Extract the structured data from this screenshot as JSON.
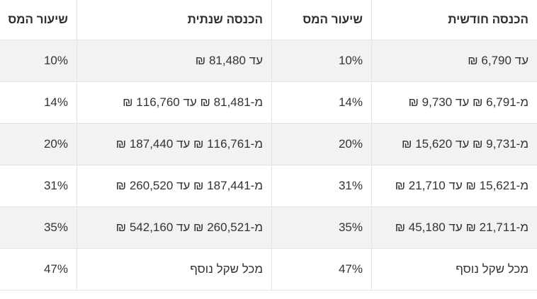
{
  "chart_data": {
    "type": "table",
    "direction": "rtl",
    "columns": [
      "הכנסה חודשית",
      "שיעור המס",
      "הכנסה שנתית",
      "שיעור המס"
    ],
    "rows": [
      [
        "עד 6,790 ₪",
        "10%",
        "עד 81,480 ₪",
        "10%"
      ],
      [
        "מ-6,791 ₪ עד 9,730 ₪",
        "14%",
        "מ-81,481 ₪ עד 116,760 ₪",
        "14%"
      ],
      [
        "מ-9,731 ₪ עד 15,620 ₪",
        "20%",
        "מ-116,761 ₪ עד 187,440 ₪",
        "20%"
      ],
      [
        "מ-15,621 ₪ עד 21,710 ₪",
        "31%",
        "מ-187,441 ₪ עד 260,520 ₪",
        "31%"
      ],
      [
        "מ-21,711 ₪ עד 45,180 ₪",
        "35%",
        "מ-260,521 ₪ עד 542,160 ₪",
        "35%"
      ],
      [
        "מכל שקל נוסף",
        "47%",
        "מכל שקל נוסף",
        "47%"
      ]
    ]
  },
  "colors": {
    "row_background": "#ffffff",
    "row_alt_background": "#f2f2f2",
    "border": "#e4e4e4",
    "text": "#333333",
    "header_text": "#2e2e2e"
  }
}
